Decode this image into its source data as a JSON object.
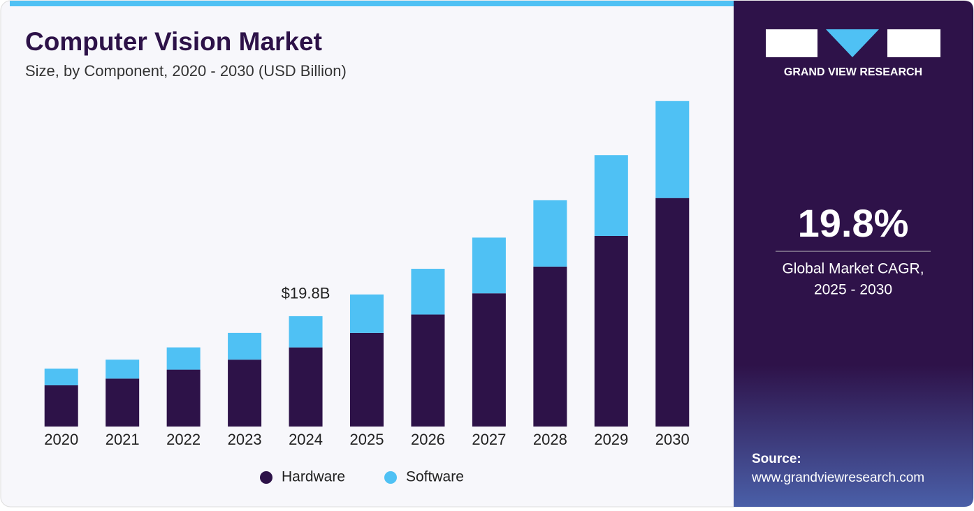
{
  "chart_data": {
    "type": "stacked_bar",
    "title": "Computer Vision Market",
    "subtitle": "Size, by Component, 2020 - 2030 (USD Billion)",
    "categories": [
      "2020",
      "2021",
      "2022",
      "2023",
      "2024",
      "2025",
      "2026",
      "2027",
      "2028",
      "2029",
      "2030"
    ],
    "series": [
      {
        "name": "Hardware",
        "color": "#2d1248",
        "values": [
          7.4,
          8.6,
          10.2,
          12.0,
          14.2,
          16.8,
          20.1,
          23.9,
          28.7,
          34.2,
          41.0
        ]
      },
      {
        "name": "Software",
        "color": "#4fc1f4",
        "values": [
          3.0,
          3.4,
          4.0,
          4.8,
          5.6,
          6.9,
          8.2,
          10.0,
          11.9,
          14.5,
          17.4
        ]
      }
    ],
    "ylim": [
      0,
      60
    ],
    "annotation": {
      "category_index": 4,
      "text": "$19.8B"
    },
    "legend": "bottom"
  },
  "sidebar": {
    "brand": "GRAND VIEW RESEARCH",
    "cagr": "19.8%",
    "cagr_label": [
      "Global Market CAGR,",
      "2025 - 2030"
    ],
    "source_label": "Source:",
    "source_url": "www.grandviewresearch.com"
  }
}
